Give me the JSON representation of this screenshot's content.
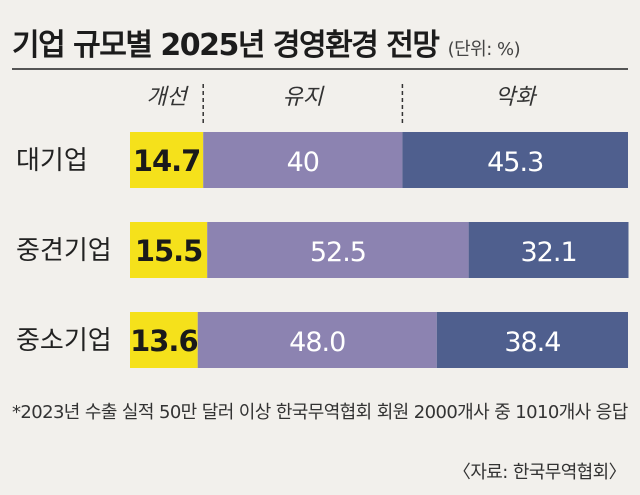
{
  "header": {
    "title": "기업 규모별 2025년 경영환경 전망",
    "unit": "(단위: %)"
  },
  "colors": {
    "개선": "#f5e11b",
    "유지": "#8c83b1",
    "악화": "#4f5f8e"
  },
  "chart_data": {
    "type": "bar",
    "stacked": true,
    "orientation": "horizontal",
    "categories": [
      "대기업",
      "중견기업",
      "중소기업"
    ],
    "series": [
      {
        "name": "개선",
        "values": [
          14.7,
          15.5,
          13.6
        ],
        "labels": [
          "14.7",
          "15.5",
          "13.6"
        ]
      },
      {
        "name": "유지",
        "values": [
          40,
          52.5,
          48.0
        ],
        "labels": [
          "40",
          "52.5",
          "48.0"
        ]
      },
      {
        "name": "악화",
        "values": [
          45.3,
          32.1,
          38.4
        ],
        "labels": [
          "45.3",
          "32.1",
          "38.4"
        ]
      }
    ],
    "xlim": [
      0,
      100
    ],
    "legend": "top"
  },
  "footer": {
    "note": "*2023년 수출 실적 50만 달러 이상 한국무역협회 회원 2000개사 중 1010개사 응답",
    "source": "〈자료: 한국무역협회〉"
  }
}
